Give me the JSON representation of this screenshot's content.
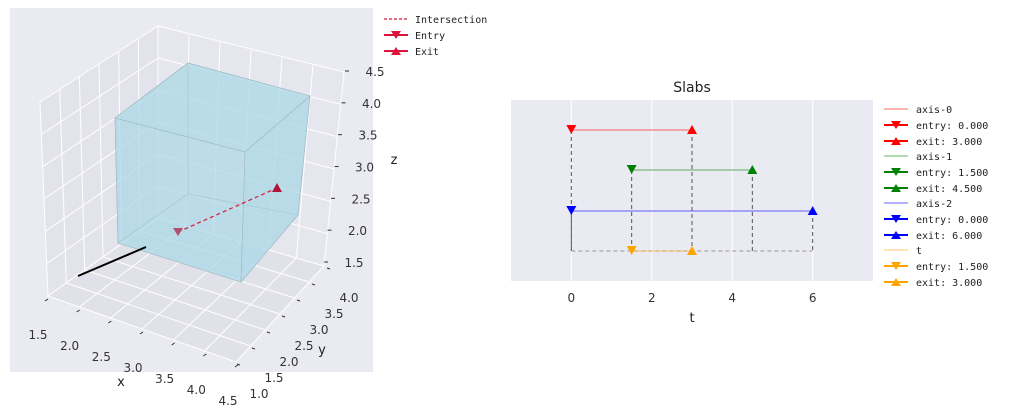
{
  "chart_data": [
    {
      "type": "3d-line",
      "xlabel": "x",
      "ylabel": "y",
      "zlabel": "z",
      "xlim": [
        1.5,
        4.5
      ],
      "ylim": [
        1.0,
        4.0
      ],
      "zlim": [
        1.5,
        4.5
      ],
      "x_ticks": [
        "1.5",
        "2.0",
        "2.5",
        "3.0",
        "3.5",
        "4.0",
        "4.5"
      ],
      "y_ticks": [
        "1.0",
        "1.5",
        "2.0",
        "2.5",
        "3.0",
        "3.5",
        "4.0"
      ],
      "z_ticks": [
        "1.5",
        "2.0",
        "2.5",
        "3.0",
        "3.5",
        "4.0",
        "4.5"
      ],
      "box": {
        "x": [
          2,
          4
        ],
        "y": [
          2,
          4
        ],
        "z": [
          2,
          4
        ],
        "color": "#add8e6"
      },
      "legend": [
        {
          "label": "Intersection",
          "color": "#dc143c",
          "style": "dashed"
        },
        {
          "label": "Entry",
          "color": "#dc143c",
          "marker": "triangle-down"
        },
        {
          "label": "Exit",
          "color": "#dc143c",
          "marker": "triangle-up"
        }
      ],
      "legend_position": "outside-right-top",
      "grid": true
    },
    {
      "type": "line",
      "title": "Slabs",
      "xlabel": "t",
      "xlim": [
        -1.5,
        7.5
      ],
      "x_ticks": [
        0,
        2,
        4,
        6
      ],
      "grid": true,
      "legend_position": "outside-right",
      "series": [
        {
          "name": "axis-0",
          "color": "#ff0000",
          "y": 3,
          "entry": 0.0,
          "exit": 3.0,
          "entry_label": "entry: 0.000",
          "exit_label": "exit: 3.000"
        },
        {
          "name": "axis-1",
          "color": "#008000",
          "y": 2,
          "entry": 1.5,
          "exit": 4.5,
          "entry_label": "entry: 1.500",
          "exit_label": "exit: 4.500"
        },
        {
          "name": "axis-2",
          "color": "#0000ff",
          "y": 1,
          "entry": 0.0,
          "exit": 6.0,
          "entry_label": "entry: 0.000",
          "exit_label": "exit: 6.000"
        },
        {
          "name": "t",
          "color": "#ffa500",
          "y": 0,
          "entry": 1.5,
          "exit": 3.0,
          "entry_label": "entry: 1.500",
          "exit_label": "exit: 3.000"
        }
      ]
    }
  ]
}
